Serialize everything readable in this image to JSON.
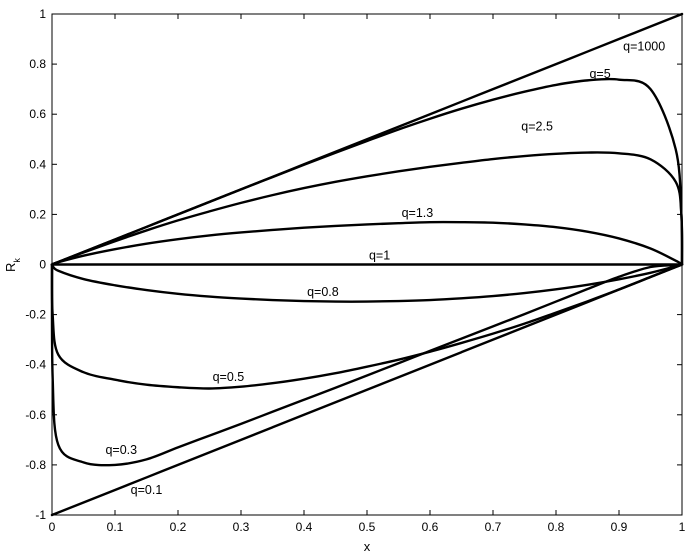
{
  "chart_data": {
    "type": "line",
    "title": "",
    "xlabel": "x",
    "ylabel": "R",
    "ylabel_subscript": "k",
    "xlim": [
      0,
      1
    ],
    "ylim": [
      -1,
      1
    ],
    "grid": false,
    "x_ticks": [
      "0",
      "0.1",
      "0.2",
      "0.3",
      "0.4",
      "0.5",
      "0.6",
      "0.7",
      "0.8",
      "0.9",
      "1"
    ],
    "y_ticks": [
      "-1",
      "-0.8",
      "-0.6",
      "-0.4",
      "-0.2",
      "0",
      "0.2",
      "0.4",
      "0.6",
      "0.8",
      "1"
    ],
    "x": [
      0,
      0.001,
      0.01,
      0.05,
      0.1,
      0.15,
      0.2,
      0.25,
      0.3,
      0.35,
      0.4,
      0.45,
      0.5,
      0.55,
      0.6,
      0.65,
      0.7,
      0.75,
      0.8,
      0.85,
      0.9,
      0.95,
      0.99,
      0.999,
      1
    ],
    "series": [
      {
        "name": "q=1000",
        "label_at": [
          0.94,
          0.87
        ],
        "values": [
          0,
          0.001,
          0.01,
          0.05,
          0.1,
          0.15,
          0.2,
          0.25,
          0.3,
          0.35,
          0.4,
          0.45,
          0.5,
          0.55,
          0.6,
          0.65,
          0.7,
          0.75,
          0.8,
          0.85,
          0.9,
          0.95,
          0.99,
          0.999,
          1
        ]
      },
      {
        "name": "q=5",
        "label_at": [
          0.87,
          0.76
        ],
        "values": [
          0,
          0.001,
          0.01,
          0.05,
          0.1,
          0.15,
          0.2,
          0.25,
          0.3,
          0.349,
          0.398,
          0.446,
          0.493,
          0.539,
          0.582,
          0.622,
          0.658,
          0.69,
          0.717,
          0.735,
          0.738,
          0.7,
          0.46,
          0.2,
          0
        ]
      },
      {
        "name": "q=2.5",
        "label_at": [
          0.77,
          0.55
        ],
        "values": [
          0,
          0.001,
          0.01,
          0.048,
          0.093,
          0.136,
          0.176,
          0.212,
          0.246,
          0.277,
          0.305,
          0.33,
          0.352,
          0.372,
          0.39,
          0.406,
          0.421,
          0.433,
          0.442,
          0.447,
          0.444,
          0.42,
          0.33,
          0.2,
          0
        ]
      },
      {
        "name": "q=1.3",
        "label_at": [
          0.58,
          0.205
        ],
        "values": [
          0,
          0.001,
          0.009,
          0.035,
          0.061,
          0.083,
          0.101,
          0.116,
          0.128,
          0.138,
          0.147,
          0.154,
          0.16,
          0.165,
          0.169,
          0.169,
          0.167,
          0.16,
          0.149,
          0.131,
          0.104,
          0.064,
          0.015,
          0.002,
          0
        ]
      },
      {
        "name": "q=1",
        "label_at": [
          0.52,
          0.035
        ],
        "values": [
          0,
          0,
          0,
          0,
          0,
          0,
          0,
          0,
          0,
          0,
          0,
          0,
          0,
          0,
          0,
          0,
          0,
          0,
          0,
          0,
          0,
          0,
          0,
          0,
          0
        ]
      },
      {
        "name": "q=0.8",
        "label_at": [
          0.43,
          -0.11
        ],
        "values": [
          0,
          -0.006,
          -0.025,
          -0.058,
          -0.083,
          -0.102,
          -0.117,
          -0.128,
          -0.136,
          -0.142,
          -0.146,
          -0.148,
          -0.148,
          -0.146,
          -0.142,
          -0.135,
          -0.126,
          -0.114,
          -0.099,
          -0.081,
          -0.059,
          -0.033,
          -0.007,
          -0.001,
          0
        ]
      },
      {
        "name": "q=0.5",
        "label_at": [
          0.28,
          -0.45
        ],
        "values": [
          0,
          -0.2,
          -0.36,
          -0.43,
          -0.46,
          -0.48,
          -0.49,
          -0.495,
          -0.488,
          -0.474,
          -0.456,
          -0.434,
          -0.408,
          -0.38,
          -0.348,
          -0.313,
          -0.276,
          -0.236,
          -0.192,
          -0.147,
          -0.1,
          -0.05,
          -0.01,
          -0.001,
          0
        ]
      },
      {
        "name": "q=0.3",
        "label_at": [
          0.11,
          -0.74
        ],
        "values": [
          0,
          -0.45,
          -0.72,
          -0.79,
          -0.8,
          -0.778,
          -0.73,
          -0.683,
          -0.636,
          -0.588,
          -0.54,
          -0.492,
          -0.443,
          -0.394,
          -0.345,
          -0.296,
          -0.247,
          -0.198,
          -0.148,
          -0.098,
          -0.049,
          -0.01,
          -0.002,
          0,
          0
        ]
      },
      {
        "name": "q=0.1",
        "label_at": [
          0.15,
          -0.9
        ],
        "values": [
          -1,
          -0.999,
          -0.99,
          -0.95,
          -0.9,
          -0.85,
          -0.8,
          -0.75,
          -0.7,
          -0.65,
          -0.6,
          -0.55,
          -0.5,
          -0.45,
          -0.4,
          -0.35,
          -0.3,
          -0.25,
          -0.2,
          -0.15,
          -0.1,
          -0.05,
          -0.01,
          -0.001,
          0
        ]
      }
    ]
  }
}
